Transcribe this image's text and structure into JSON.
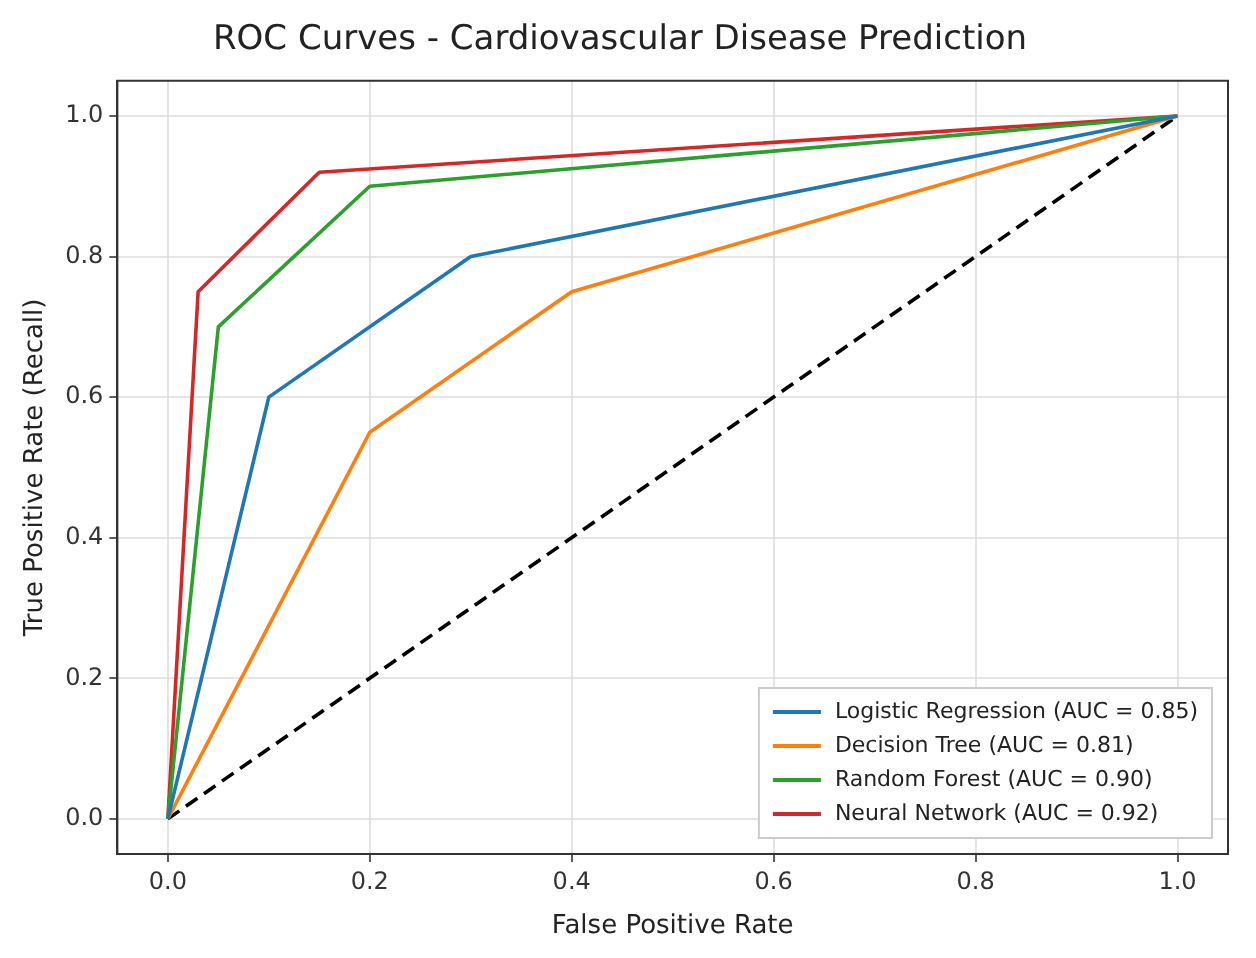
{
  "chart_data": {
    "type": "line",
    "title": "ROC Curves - Cardiovascular Disease Prediction",
    "xlabel": "False Positive Rate",
    "ylabel": "True Positive Rate (Recall)",
    "series": [
      {
        "name": "Logistic Regression (AUC = 0.85)",
        "color": "#1f77b4",
        "x": [
          0,
          0.1,
          0.3,
          1
        ],
        "values": [
          0,
          0.6,
          0.8,
          1
        ]
      },
      {
        "name": "Decision Tree (AUC = 0.81)",
        "color": "#ff7f0e",
        "x": [
          0,
          0.2,
          0.4,
          1
        ],
        "values": [
          0,
          0.55,
          0.75,
          1
        ]
      },
      {
        "name": "Random Forest (AUC = 0.90)",
        "color": "#2ca02c",
        "x": [
          0,
          0.05,
          0.2,
          1
        ],
        "values": [
          0,
          0.7,
          0.9,
          1
        ]
      },
      {
        "name": "Neural Network (AUC = 0.92)",
        "color": "#d62728",
        "x": [
          0,
          0.03,
          0.15,
          1
        ],
        "values": [
          0,
          0.75,
          0.92,
          1
        ]
      },
      {
        "color": "#000000",
        "x": [
          0,
          1
        ],
        "values": [
          0,
          1
        ],
        "line_style": "dashed"
      }
    ],
    "xlim": [
      -0.05,
      1.05
    ],
    "ylim": [
      -0.05,
      1.05
    ],
    "xticks": [
      {
        "value": 0,
        "label": "0.0"
      },
      {
        "value": 0.2,
        "label": "0.2"
      },
      {
        "value": 0.4,
        "label": "0.4"
      },
      {
        "value": 0.6,
        "label": "0.6"
      },
      {
        "value": 0.8,
        "label": "0.8"
      },
      {
        "value": 1,
        "label": "1.0"
      }
    ],
    "yticks": [
      {
        "value": 0,
        "label": "0.0"
      },
      {
        "value": 0.2,
        "label": "0.2"
      },
      {
        "value": 0.4,
        "label": "0.4"
      },
      {
        "value": 0.6,
        "label": "0.6"
      },
      {
        "value": 0.8,
        "label": "0.8"
      },
      {
        "value": 1,
        "label": "1.0"
      }
    ],
    "grid": true,
    "legend": "bottom right",
    "marker": "none",
    "line_style": "solid"
  }
}
